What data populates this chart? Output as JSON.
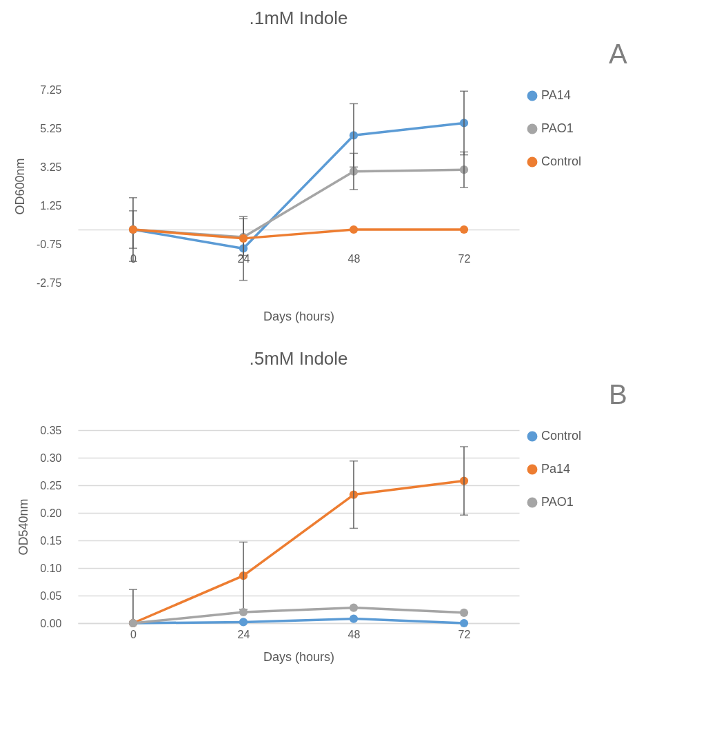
{
  "chart_data": [
    {
      "type": "line",
      "title": ".1mM Indole",
      "xlabel": "Days (hours)",
      "ylabel": "OD600nm",
      "annotations": [
        "A"
      ],
      "categories": [
        "0",
        "24",
        "48",
        "72"
      ],
      "series": [
        {
          "name": "PA14",
          "color": "#5b9bd5",
          "values": [
            0,
            -0.98,
            4.88,
            5.52
          ],
          "errors": [
            1.65,
            1.65,
            1.64,
            1.65
          ]
        },
        {
          "name": "PAO1",
          "color": "#a5a5a5",
          "values": [
            0,
            -0.39,
            3.01,
            3.1
          ],
          "errors": [
            0.97,
            0.95,
            0.94,
            0.92
          ]
        },
        {
          "name": "Control",
          "color": "#ed7d31",
          "values": [
            0,
            -0.46,
            0,
            0
          ]
        }
      ],
      "ylim": [
        -2.75,
        7.25
      ],
      "yticks": [
        -2.75,
        -0.75,
        1.25,
        3.25,
        5.25,
        7.25
      ],
      "grid": false,
      "legend": "right",
      "marker": "circle"
    },
    {
      "type": "line",
      "title": ".5mM Indole",
      "xlabel": "Days (hours)",
      "ylabel": "OD540nm",
      "annotations": [
        "B"
      ],
      "categories": [
        "0",
        "24",
        "48",
        "72"
      ],
      "series": [
        {
          "name": "Control",
          "color": "#5b9bd5",
          "values": [
            0,
            0.002,
            0.008,
            0
          ]
        },
        {
          "name": "Pa14",
          "color": "#ed7d31",
          "values": [
            0,
            0.086,
            0.233,
            0.258
          ],
          "errors": [
            [
              0,
              0.061
            ],
            0.061,
            0.061,
            0.062
          ]
        },
        {
          "name": "PAO1",
          "color": "#a5a5a5",
          "values": [
            0,
            0.02,
            0.028,
            0.019
          ]
        }
      ],
      "ylim": [
        0,
        0.35
      ],
      "yticks": [
        {
          "value": 0,
          "label": "0.00"
        },
        0.05,
        {
          "value": 0.1,
          "label": "0.10"
        },
        0.15,
        {
          "value": 0.2,
          "label": "0.20"
        },
        0.25,
        {
          "value": 0.3,
          "label": "0.30"
        },
        0.35
      ],
      "grid": "y",
      "legend": "right",
      "marker": "circle"
    }
  ]
}
